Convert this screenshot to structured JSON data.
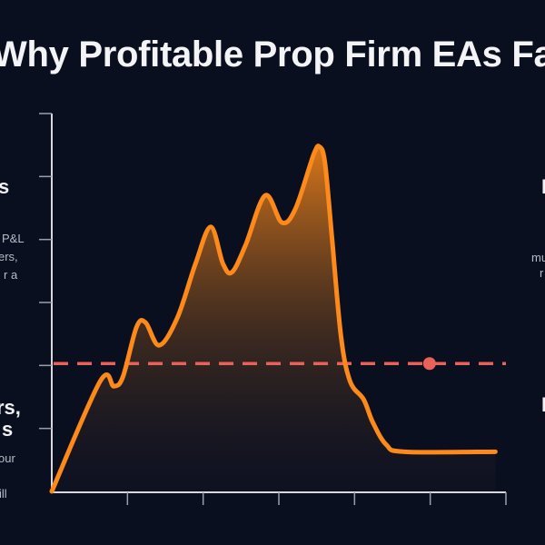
{
  "title": "Why Profitable Prop Firm EAs Fa",
  "left_fragments": {
    "heading_top": "s",
    "body_top": [
      "P&L",
      "ers,",
      "r a"
    ],
    "heading_bottom": [
      "rs,",
      "s"
    ],
    "body_bottom": [
      "our",
      "ill"
    ]
  },
  "right_fragments": {
    "heading_top": "I",
    "body_top": [
      "mu",
      "r"
    ],
    "heading_bottom": "I"
  },
  "colors": {
    "background": "#0a0f1f",
    "curve": "#ff8a1a",
    "threshold": "#e8625a",
    "axis": "#d8d8dc"
  },
  "chart_data": {
    "type": "area",
    "title": "",
    "xlabel": "",
    "ylabel": "",
    "xlim": [
      0,
      6
    ],
    "ylim": [
      0,
      6
    ],
    "x_ticks": [
      0,
      1,
      2,
      3,
      4,
      5,
      6
    ],
    "y_ticks": [
      0,
      1,
      2,
      3,
      4,
      5,
      6
    ],
    "tick_labels_shown": false,
    "grid": false,
    "series": [
      {
        "x": [
          0,
          0.64,
          0.82,
          0.94,
          1.12,
          1.24,
          1.42,
          1.66,
          1.9,
          2.1,
          2.26,
          2.38,
          2.56,
          2.82,
          3.04,
          3.22,
          3.46,
          3.54,
          3.61,
          3.7,
          3.82,
          3.94,
          4.12,
          4.24,
          4.42,
          4.66,
          5.86
        ],
        "y": [
          0,
          1.75,
          1.67,
          1.82,
          2.61,
          2.68,
          2.32,
          2.76,
          3.62,
          4.2,
          3.62,
          3.48,
          3.91,
          4.7,
          4.27,
          4.49,
          5.35,
          5.47,
          5.21,
          4.05,
          2.47,
          1.75,
          1.46,
          1.1,
          0.74,
          0.63,
          0.63
        ]
      }
    ],
    "threshold_line": {
      "y": 2.03,
      "style": "dashed",
      "marker_x": 4.99
    }
  }
}
